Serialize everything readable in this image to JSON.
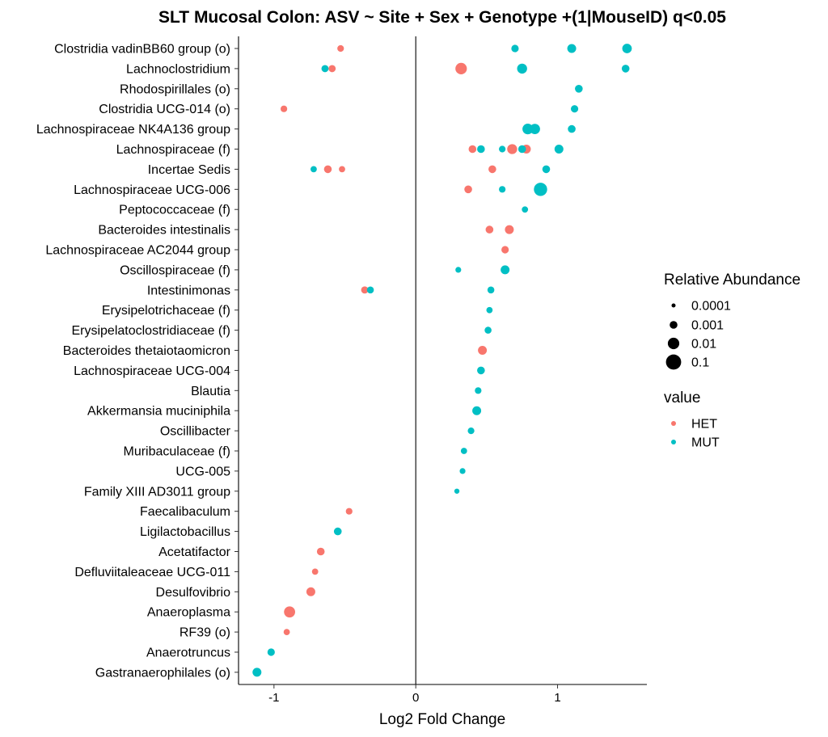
{
  "chart_data": {
    "type": "scatter",
    "title": "SLT Mucosal Colon: ASV ~ Site + Sex + Genotype +(1|MouseID) q<0.05",
    "xlabel": "Log2 Fold Change",
    "ylabel": "",
    "xlim": [
      -1.25,
      1.63
    ],
    "xticks": [
      -1,
      0,
      1
    ],
    "xtick_labels": [
      "-1",
      "0",
      "1"
    ],
    "reference_line_x": 0,
    "grid": false,
    "categories": [
      "Clostridia vadinBB60 group (o)",
      "Lachnoclostridium",
      "Rhodospirillales (o)",
      "Clostridia UCG-014 (o)",
      "Lachnospiraceae NK4A136 group",
      "Lachnospiraceae (f)",
      "Incertae Sedis",
      "Lachnospiraceae UCG-006",
      "Peptococcaceae (f)",
      "Bacteroides intestinalis",
      "Lachnospiraceae AC2044 group",
      "Oscillospiraceae (f)",
      "Intestinimonas",
      "Erysipelotrichaceae (f)",
      "Erysipelatoclostridiaceae (f)",
      "Bacteroides thetaiotaomicron",
      "Lachnospiraceae UCG-004",
      "Blautia",
      "Akkermansia muciniphila",
      "Oscillibacter",
      "Muribaculaceae (f)",
      "UCG-005",
      "Family XIII AD3011 group",
      "Faecalibaculum",
      "Ligilactobacillus",
      "Acetatifactor",
      "Defluviitaleaceae UCG-011",
      "Desulfovibrio",
      "Anaeroplasma",
      "RF39 (o)",
      "Anaerotruncus",
      "Gastranaerophilales (o)"
    ],
    "colors": {
      "HET": "#F8766D",
      "MUT": "#00BFC4"
    },
    "series": [
      {
        "name": "HET",
        "points": [
          {
            "taxon": "Clostridia vadinBB60 group (o)",
            "x": -0.53,
            "abundance": 0.0005
          },
          {
            "taxon": "Lachnoclostridium",
            "x": -0.59,
            "abundance": 0.0007
          },
          {
            "taxon": "Lachnoclostridium",
            "x": 0.32,
            "abundance": 0.01
          },
          {
            "taxon": "Clostridia UCG-014 (o)",
            "x": -0.93,
            "abundance": 0.0005
          },
          {
            "taxon": "Lachnospiraceae (f)",
            "x": 0.4,
            "abundance": 0.001
          },
          {
            "taxon": "Lachnospiraceae (f)",
            "x": 0.68,
            "abundance": 0.004
          },
          {
            "taxon": "Lachnospiraceae (f)",
            "x": 0.78,
            "abundance": 0.002
          },
          {
            "taxon": "Incertae Sedis",
            "x": -0.62,
            "abundance": 0.001
          },
          {
            "taxon": "Incertae Sedis",
            "x": -0.52,
            "abundance": 0.0004
          },
          {
            "taxon": "Incertae Sedis",
            "x": 0.54,
            "abundance": 0.001
          },
          {
            "taxon": "Lachnospiraceae UCG-006",
            "x": 0.37,
            "abundance": 0.001
          },
          {
            "taxon": "Bacteroides intestinalis",
            "x": 0.52,
            "abundance": 0.001
          },
          {
            "taxon": "Bacteroides intestinalis",
            "x": 0.66,
            "abundance": 0.002
          },
          {
            "taxon": "Lachnospiraceae AC2044 group",
            "x": 0.63,
            "abundance": 0.0008
          },
          {
            "taxon": "Intestinimonas",
            "x": -0.36,
            "abundance": 0.0007
          },
          {
            "taxon": "Bacteroides thetaiotaomicron",
            "x": 0.47,
            "abundance": 0.002
          },
          {
            "taxon": "Faecalibaculum",
            "x": -0.47,
            "abundance": 0.0005
          },
          {
            "taxon": "Acetatifactor",
            "x": -0.67,
            "abundance": 0.001
          },
          {
            "taxon": "Defluviitaleaceae UCG-011",
            "x": -0.71,
            "abundance": 0.0004
          },
          {
            "taxon": "Desulfovibrio",
            "x": -0.74,
            "abundance": 0.002
          },
          {
            "taxon": "Anaeroplasma",
            "x": -0.89,
            "abundance": 0.008
          },
          {
            "taxon": "RF39 (o)",
            "x": -0.91,
            "abundance": 0.0004
          }
        ]
      },
      {
        "name": "MUT",
        "points": [
          {
            "taxon": "Clostridia vadinBB60 group (o)",
            "x": 0.7,
            "abundance": 0.0008
          },
          {
            "taxon": "Clostridia vadinBB60 group (o)",
            "x": 1.1,
            "abundance": 0.002
          },
          {
            "taxon": "Clostridia vadinBB60 group (o)",
            "x": 1.49,
            "abundance": 0.003
          },
          {
            "taxon": "Lachnoclostridium",
            "x": -0.64,
            "abundance": 0.0007
          },
          {
            "taxon": "Lachnoclostridium",
            "x": 0.75,
            "abundance": 0.004
          },
          {
            "taxon": "Lachnoclostridium",
            "x": 1.48,
            "abundance": 0.001
          },
          {
            "taxon": "Rhodospirillales (o)",
            "x": 1.15,
            "abundance": 0.001
          },
          {
            "taxon": "Clostridia UCG-014 (o)",
            "x": 1.12,
            "abundance": 0.0008
          },
          {
            "taxon": "Lachnospiraceae NK4A136 group",
            "x": 0.79,
            "abundance": 0.006
          },
          {
            "taxon": "Lachnospiraceae NK4A136 group",
            "x": 0.84,
            "abundance": 0.005
          },
          {
            "taxon": "Lachnospiraceae NK4A136 group",
            "x": 1.1,
            "abundance": 0.001
          },
          {
            "taxon": "Lachnospiraceae (f)",
            "x": 0.46,
            "abundance": 0.001
          },
          {
            "taxon": "Lachnospiraceae (f)",
            "x": 0.61,
            "abundance": 0.0005
          },
          {
            "taxon": "Lachnospiraceae (f)",
            "x": 0.75,
            "abundance": 0.001
          },
          {
            "taxon": "Lachnospiraceae (f)",
            "x": 1.01,
            "abundance": 0.002
          },
          {
            "taxon": "Incertae Sedis",
            "x": -0.72,
            "abundance": 0.0004
          },
          {
            "taxon": "Incertae Sedis",
            "x": 0.92,
            "abundance": 0.001
          },
          {
            "taxon": "Lachnospiraceae UCG-006",
            "x": 0.61,
            "abundance": 0.0005
          },
          {
            "taxon": "Lachnospiraceae UCG-006",
            "x": 0.88,
            "abundance": 0.03
          },
          {
            "taxon": "Peptococcaceae (f)",
            "x": 0.77,
            "abundance": 0.0004
          },
          {
            "taxon": "Oscillospiraceae (f)",
            "x": 0.3,
            "abundance": 0.0003
          },
          {
            "taxon": "Oscillospiraceae (f)",
            "x": 0.63,
            "abundance": 0.002
          },
          {
            "taxon": "Intestinimonas",
            "x": -0.32,
            "abundance": 0.0006
          },
          {
            "taxon": "Intestinimonas",
            "x": 0.53,
            "abundance": 0.0006
          },
          {
            "taxon": "Erysipelotrichaceae (f)",
            "x": 0.52,
            "abundance": 0.0004
          },
          {
            "taxon": "Erysipelatoclostridiaceae (f)",
            "x": 0.51,
            "abundance": 0.0006
          },
          {
            "taxon": "Lachnospiraceae UCG-004",
            "x": 0.46,
            "abundance": 0.001
          },
          {
            "taxon": "Blautia",
            "x": 0.44,
            "abundance": 0.0005
          },
          {
            "taxon": "Akkermansia muciniphila",
            "x": 0.43,
            "abundance": 0.002
          },
          {
            "taxon": "Oscillibacter",
            "x": 0.39,
            "abundance": 0.0005
          },
          {
            "taxon": "Muribaculaceae (f)",
            "x": 0.34,
            "abundance": 0.0004
          },
          {
            "taxon": "UCG-005",
            "x": 0.33,
            "abundance": 0.0003
          },
          {
            "taxon": "Family XIII AD3011 group",
            "x": 0.29,
            "abundance": 0.0002
          },
          {
            "taxon": "Ligilactobacillus",
            "x": -0.55,
            "abundance": 0.001
          },
          {
            "taxon": "Anaerotruncus",
            "x": -1.02,
            "abundance": 0.0008
          },
          {
            "taxon": "Gastranaerophilales (o)",
            "x": -1.12,
            "abundance": 0.002
          }
        ]
      }
    ],
    "size_legend": {
      "title": "Relative Abundance",
      "values": [
        0.0001,
        0.001,
        0.01,
        0.1
      ],
      "labels": [
        "0.0001",
        "0.001",
        "0.01",
        "0.1"
      ]
    },
    "color_legend": {
      "title": "value",
      "labels": [
        "HET",
        "MUT"
      ]
    },
    "legend_position": "right"
  }
}
